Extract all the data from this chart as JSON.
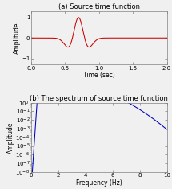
{
  "title_a": "(a) Source time function",
  "title_b": "(b) The spectrum of source time function",
  "xlabel_a": "Time (sec)",
  "ylabel_a": "Amplitude",
  "xlabel_b": "Frequency (Hz)",
  "ylabel_b": "Amplitude",
  "xlim_a": [
    0.0,
    2.0
  ],
  "ylim_a": [
    -1.3,
    1.3
  ],
  "xticks_a": [
    0.0,
    0.5,
    1.0,
    1.5,
    2.0
  ],
  "yticks_a": [
    -1,
    0,
    1
  ],
  "xlim_b": [
    0,
    10
  ],
  "ylim_b_log": [
    -8,
    0
  ],
  "xticks_b": [
    0,
    2,
    4,
    6,
    8,
    10
  ],
  "line_color_a": "#cc0000",
  "line_color_b": "#0000bb",
  "bg_color": "#f0f0f0",
  "f0": 2.5,
  "t_shift": 0.7,
  "dt": 0.001,
  "t_max": 2.0,
  "f_max": 10.0,
  "title_fontsize": 6.0,
  "label_fontsize": 5.5,
  "tick_fontsize": 5.0
}
